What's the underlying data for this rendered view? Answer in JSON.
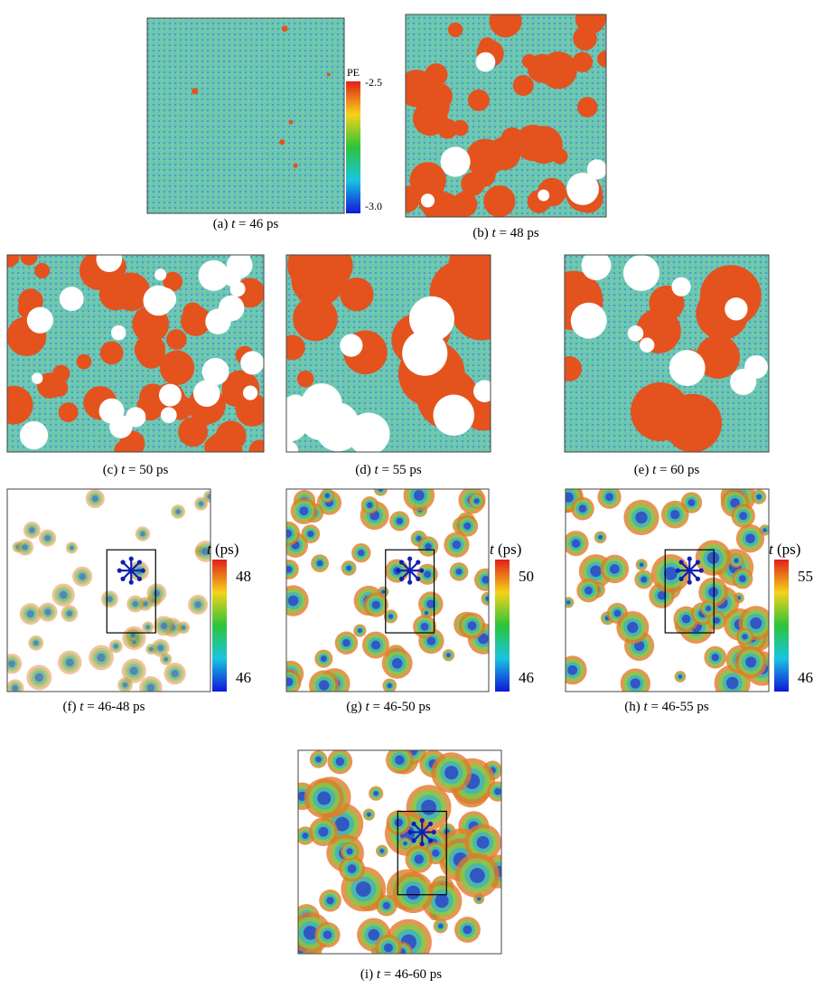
{
  "panels": [
    {
      "caption": {
        "label": "(a)",
        "var": "t",
        "rest": "= 46 ps"
      },
      "colorbar": {
        "title": "PE",
        "max": "-2.5",
        "min": "-3.0"
      }
    },
    {
      "caption": {
        "label": "(b)",
        "var": "t",
        "rest": "= 48 ps"
      }
    },
    {
      "caption": {
        "label": "(c)",
        "var": "t",
        "rest": "= 50 ps"
      }
    },
    {
      "caption": {
        "label": "(d)",
        "var": "t",
        "rest": "= 55 ps"
      }
    },
    {
      "caption": {
        "label": "(e)",
        "var": "t",
        "rest": "= 60 ps"
      }
    },
    {
      "caption": {
        "label": "(f)",
        "var": "t",
        "rest": "= 46-48 ps"
      },
      "colorbar": {
        "title_var": "t",
        "title_unit": "(ps)",
        "max": "48",
        "min": "46"
      }
    },
    {
      "caption": {
        "label": "(g)",
        "var": "t",
        "rest": "= 46-50 ps"
      },
      "colorbar": {
        "title_var": "t",
        "title_unit": "(ps)",
        "max": "50",
        "min": "46"
      }
    },
    {
      "caption": {
        "label": "(h)",
        "var": "t",
        "rest": "= 46-55 ps"
      },
      "colorbar": {
        "title_var": "t",
        "title_unit": "(ps)",
        "max": "55",
        "min": "46"
      }
    },
    {
      "caption": {
        "label": "(i)",
        "var": "t",
        "rest": "= 46-60 ps"
      }
    }
  ]
}
